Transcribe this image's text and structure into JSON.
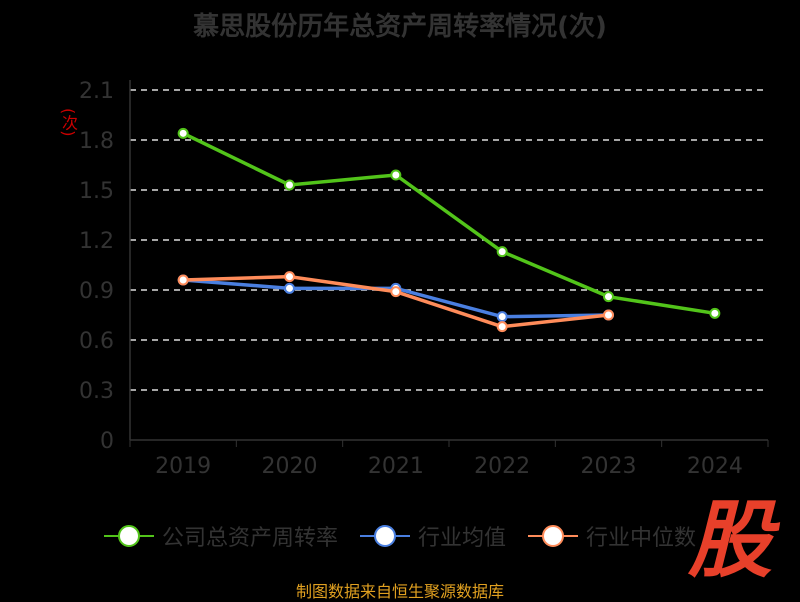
{
  "chart_data": {
    "type": "line",
    "title": "慕思股份历年总资产周转率情况(次)",
    "ylabel": "(次)",
    "xlabel": "",
    "categories": [
      "2019",
      "2020",
      "2021",
      "2022",
      "2023",
      "2024"
    ],
    "ylim": [
      0,
      2.1
    ],
    "yticks": [
      "0",
      "0.3",
      "0.6",
      "0.9",
      "1.2",
      "1.5",
      "1.8",
      "2.1"
    ],
    "grid": true,
    "legend_position": "bottom",
    "series": [
      {
        "name": "公司总资产周转率",
        "color": "#52c41a",
        "values": [
          1.84,
          1.53,
          1.59,
          1.13,
          0.86,
          0.76
        ]
      },
      {
        "name": "行业均值",
        "color": "#4a7fe0",
        "values": [
          0.96,
          0.91,
          0.91,
          0.74,
          0.75,
          null
        ]
      },
      {
        "name": "行业中位数",
        "color": "#ff8c5a",
        "values": [
          0.96,
          0.98,
          0.89,
          0.68,
          0.75,
          null
        ]
      }
    ]
  },
  "source": "制图数据来自恒生聚源数据库",
  "logo_text": "股"
}
